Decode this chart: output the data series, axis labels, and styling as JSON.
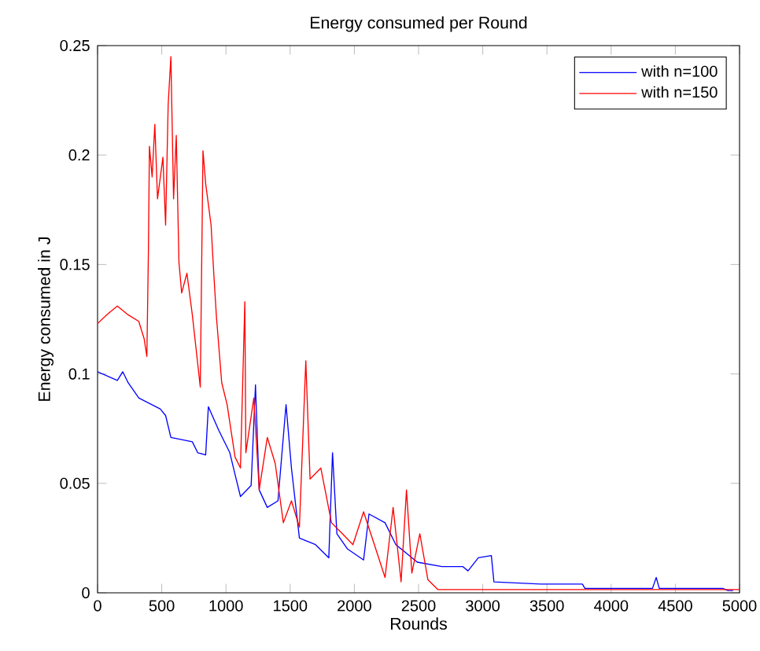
{
  "chart_data": {
    "type": "line",
    "title": "Energy consumed per Round",
    "xlabel": "Rounds",
    "ylabel": "Energy consumed in J",
    "xlim": [
      0,
      5000
    ],
    "xticks": [
      0,
      500,
      1000,
      1500,
      2000,
      2500,
      3000,
      3500,
      4000,
      4500,
      5000
    ],
    "ylim": [
      0,
      0.25
    ],
    "yticks": [
      0,
      0.05,
      0.1,
      0.15,
      0.2,
      0.25
    ],
    "legend": "top right",
    "marker": "none",
    "line_style": "solid",
    "series": [
      {
        "name": "with n=100",
        "color": "#0000ff",
        "x": [
          0,
          154,
          196,
          238,
          321,
          488,
          530,
          571,
          738,
          780,
          842,
          863,
          946,
          1030,
          1071,
          1113,
          1196,
          1230,
          1259,
          1322,
          1405,
          1468,
          1510,
          1572,
          1697,
          1801,
          1830,
          1864,
          1947,
          2072,
          2114,
          2239,
          2323,
          2490,
          2682,
          2844,
          2885,
          2966,
          3067,
          3087,
          3452,
          3776,
          3796,
          4322,
          4351,
          4375,
          4869,
          4910,
          4950
        ],
        "values": [
          0.101,
          0.097,
          0.101,
          0.096,
          0.089,
          0.084,
          0.081,
          0.071,
          0.069,
          0.064,
          0.063,
          0.085,
          0.074,
          0.064,
          0.054,
          0.044,
          0.049,
          0.095,
          0.047,
          0.039,
          0.042,
          0.086,
          0.057,
          0.025,
          0.022,
          0.016,
          0.064,
          0.027,
          0.02,
          0.015,
          0.036,
          0.032,
          0.022,
          0.014,
          0.012,
          0.012,
          0.01,
          0.016,
          0.017,
          0.005,
          0.004,
          0.004,
          0.002,
          0.002,
          0.007,
          0.002,
          0.002,
          0.001,
          0.001
        ]
      },
      {
        "name": "with n=150",
        "color": "#ff0000",
        "x": [
          0,
          71,
          154,
          238,
          321,
          363,
          384,
          396,
          404,
          425,
          446,
          467,
          509,
          530,
          550,
          571,
          592,
          613,
          634,
          655,
          696,
          738,
          800,
          821,
          842,
          884,
          905,
          926,
          967,
          1009,
          1071,
          1113,
          1147,
          1155,
          1217,
          1259,
          1322,
          1384,
          1447,
          1510,
          1572,
          1622,
          1655,
          1739,
          1822,
          1906,
          1989,
          2072,
          2156,
          2239,
          2302,
          2364,
          2406,
          2448,
          2510,
          2573,
          2650,
          5000
        ],
        "values": [
          0.123,
          0.127,
          0.131,
          0.127,
          0.124,
          0.116,
          0.108,
          0.156,
          0.204,
          0.19,
          0.214,
          0.18,
          0.199,
          0.168,
          0.223,
          0.245,
          0.18,
          0.209,
          0.151,
          0.137,
          0.146,
          0.127,
          0.094,
          0.202,
          0.187,
          0.168,
          0.146,
          0.126,
          0.096,
          0.086,
          0.062,
          0.057,
          0.133,
          0.064,
          0.089,
          0.047,
          0.071,
          0.059,
          0.032,
          0.042,
          0.03,
          0.106,
          0.052,
          0.057,
          0.032,
          0.027,
          0.022,
          0.037,
          0.022,
          0.007,
          0.039,
          0.005,
          0.047,
          0.009,
          0.027,
          0.006,
          0.0015,
          0.0015
        ]
      }
    ]
  }
}
